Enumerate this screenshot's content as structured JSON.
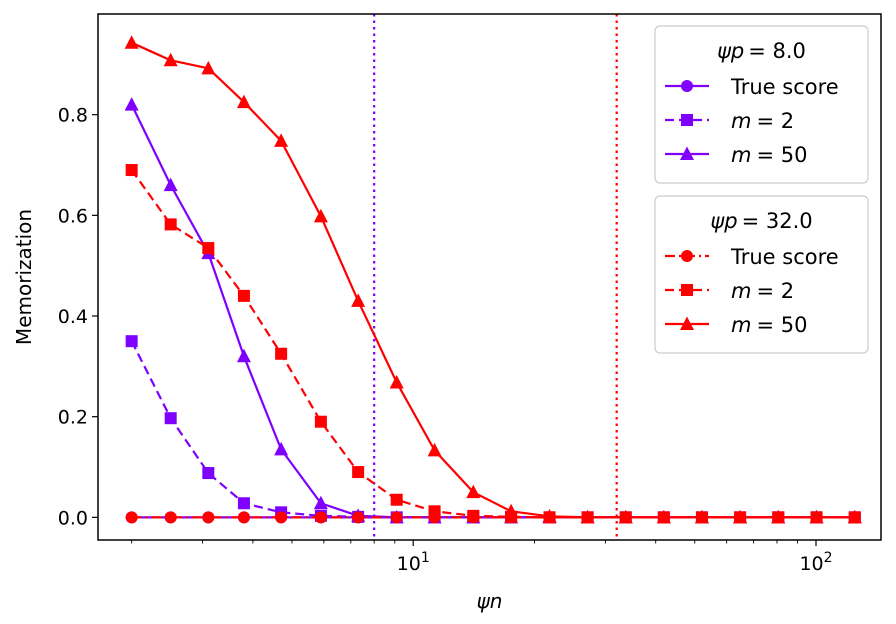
{
  "chart_data": {
    "type": "line",
    "xlabel": "ψn",
    "ylabel": "Memorization",
    "xscale": "log",
    "xlim": [
      1.65,
      145
    ],
    "ylim": [
      -0.045,
      1.0
    ],
    "yticks": [
      0.0,
      0.2,
      0.4,
      0.6,
      0.8
    ],
    "ytick_labels": [
      "0.0",
      "0.2",
      "0.4",
      "0.6",
      "0.8"
    ],
    "xticks": [
      {
        "value": 10,
        "base": "10",
        "exp": "1"
      },
      {
        "value": 100,
        "base": "10",
        "exp": "2"
      }
    ],
    "x": [
      2.0,
      2.5,
      3.1,
      3.8,
      4.7,
      5.9,
      7.3,
      9.1,
      11.3,
      14.1,
      17.5,
      21.8,
      27.1,
      33.7,
      41.9,
      52.1,
      64.8,
      80.6,
      100.3,
      124.8
    ],
    "vlines": [
      {
        "x": 8.0,
        "color": "#7f00ff",
        "style": "dotted"
      },
      {
        "x": 32.0,
        "color": "#ff0000",
        "style": "dotted"
      }
    ],
    "legends": [
      {
        "title_var": "ψp",
        "title_value": "= 8.0",
        "entries": [
          {
            "label": "True score",
            "marker": "circle",
            "dash": "solid",
            "color": "#7f00ff"
          },
          {
            "label_var": "m",
            "label_value": "= 2",
            "marker": "square",
            "dash": "dashed",
            "color": "#7f00ff"
          },
          {
            "label_var": "m",
            "label_value": "= 50",
            "marker": "triangle",
            "dash": "solid",
            "color": "#7f00ff"
          }
        ]
      },
      {
        "title_var": "ψp",
        "title_value": "= 32.0",
        "entries": [
          {
            "label": "True score",
            "marker": "circle",
            "dash": "dashdot",
            "color": "#ff0000"
          },
          {
            "label_var": "m",
            "label_value": "= 2",
            "marker": "square",
            "dash": "dashed",
            "color": "#ff0000"
          },
          {
            "label_var": "m",
            "label_value": "= 50",
            "marker": "triangle",
            "dash": "solid",
            "color": "#ff0000"
          }
        ]
      }
    ],
    "series": [
      {
        "name": "psi_p=8.0 True score",
        "color": "#7f00ff",
        "marker": "circle",
        "dash": "solid",
        "values": [
          0,
          0,
          0,
          0,
          0,
          0,
          0,
          0,
          0,
          0,
          0,
          0,
          0,
          0,
          0,
          0,
          0,
          0,
          0,
          0
        ]
      },
      {
        "name": "psi_p=8.0 m=2",
        "color": "#7f00ff",
        "marker": "square",
        "dash": "dashed",
        "values": [
          0.35,
          0.197,
          0.088,
          0.028,
          0.01,
          0.003,
          0.001,
          0,
          0,
          0,
          0,
          0,
          0,
          0,
          0,
          0,
          0,
          0,
          0,
          0
        ]
      },
      {
        "name": "psi_p=8.0 m=50",
        "color": "#7f00ff",
        "marker": "triangle",
        "dash": "solid",
        "values": [
          0.82,
          0.66,
          0.525,
          0.32,
          0.135,
          0.028,
          0.003,
          0,
          0,
          0,
          0,
          0,
          0,
          0,
          0,
          0,
          0,
          0,
          0,
          0
        ]
      },
      {
        "name": "psi_p=32.0 True score",
        "color": "#ff0000",
        "marker": "circle",
        "dash": "dashdot",
        "values": [
          0,
          0,
          0,
          0,
          0,
          0,
          0,
          0,
          0,
          0,
          0,
          0,
          0,
          0,
          0,
          0,
          0,
          0,
          0,
          0
        ]
      },
      {
        "name": "psi_p=32.0 m=2",
        "color": "#ff0000",
        "marker": "square",
        "dash": "dashed",
        "values": [
          0.69,
          0.582,
          0.535,
          0.44,
          0.325,
          0.19,
          0.09,
          0.035,
          0.012,
          0.003,
          0.001,
          0,
          0,
          0,
          0,
          0,
          0,
          0,
          0,
          0
        ]
      },
      {
        "name": "psi_p=32.0 m=50",
        "color": "#ff0000",
        "marker": "triangle",
        "dash": "solid",
        "values": [
          0.943,
          0.908,
          0.892,
          0.825,
          0.748,
          0.598,
          0.43,
          0.268,
          0.133,
          0.05,
          0.012,
          0.002,
          0,
          0,
          0,
          0,
          0,
          0,
          0,
          0
        ]
      }
    ]
  }
}
